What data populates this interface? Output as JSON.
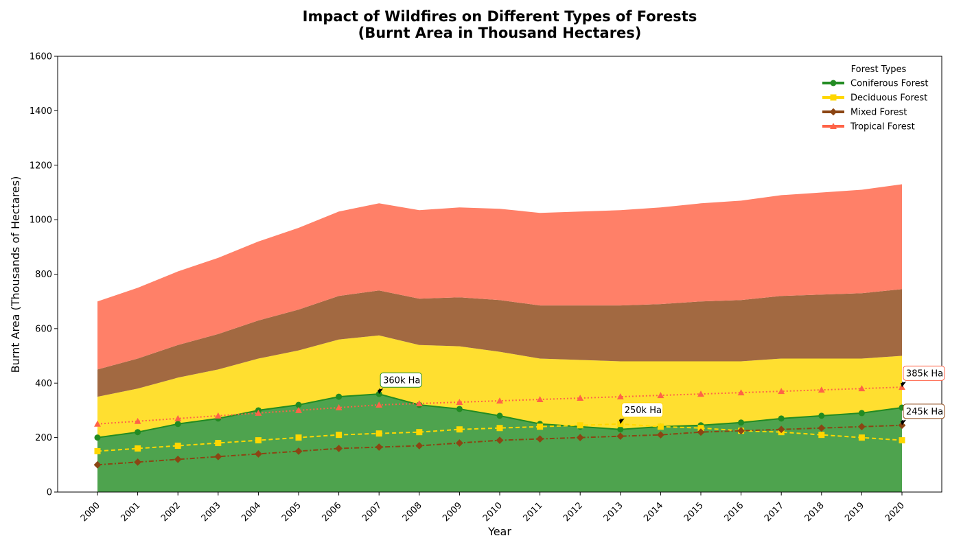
{
  "chart_data": {
    "type": "area",
    "title_line1": "Impact of Wildfires on Different Types of Forests",
    "title_line2": "(Burnt Area in Thousand Hectares)",
    "xlabel": "Year",
    "ylabel": "Burnt Area (Thousands of Hectares)",
    "ylim": [
      0,
      1600
    ],
    "yticks": [
      0,
      200,
      400,
      600,
      800,
      1000,
      1200,
      1400,
      1600
    ],
    "x": [
      2000,
      2001,
      2002,
      2003,
      2004,
      2005,
      2006,
      2007,
      2008,
      2009,
      2010,
      2011,
      2012,
      2013,
      2014,
      2015,
      2016,
      2017,
      2018,
      2019,
      2020
    ],
    "grid": false,
    "stacked": true,
    "legend": {
      "title": "Forest Types",
      "placement": "top-right"
    },
    "series": [
      {
        "name": "Coniferous Forest",
        "line_color": "#228b22",
        "fill_color": "#4ea34e",
        "marker": "circle",
        "line_style": "solid",
        "values": [
          200,
          220,
          250,
          270,
          300,
          320,
          350,
          360,
          320,
          305,
          280,
          250,
          240,
          230,
          240,
          245,
          255,
          270,
          280,
          290,
          310
        ]
      },
      {
        "name": "Deciduous Forest",
        "line_color": "#ffd700",
        "fill_color": "#ffdf30",
        "marker": "square",
        "line_style": "dashed",
        "values": [
          150,
          160,
          170,
          180,
          190,
          200,
          210,
          215,
          220,
          230,
          235,
          240,
          245,
          250,
          240,
          235,
          225,
          220,
          210,
          200,
          190
        ]
      },
      {
        "name": "Mixed Forest",
        "line_color": "#8b4513",
        "fill_color": "#a26941",
        "marker": "diamond",
        "line_style": "dashdot",
        "values": [
          100,
          110,
          120,
          130,
          140,
          150,
          160,
          165,
          170,
          180,
          190,
          195,
          200,
          205,
          210,
          220,
          225,
          230,
          235,
          240,
          245
        ]
      },
      {
        "name": "Tropical Forest",
        "line_color": "#ff6347",
        "fill_color": "#ff8068",
        "marker": "triangle",
        "line_style": "dotted",
        "values": [
          250,
          260,
          270,
          280,
          290,
          300,
          310,
          320,
          325,
          330,
          335,
          340,
          345,
          350,
          355,
          360,
          365,
          370,
          375,
          380,
          385
        ]
      }
    ],
    "annotations": [
      {
        "text": "360k Ha",
        "x": 2007,
        "y": 360,
        "text_x": 2007.05,
        "text_y": 400,
        "color": "#228b22"
      },
      {
        "text": "250k Ha",
        "x": 2013,
        "y": 250,
        "text_x": 2013.05,
        "text_y": 290,
        "color": "#ffd700"
      },
      {
        "text": "245k Ha",
        "x": 2020,
        "y": 245,
        "text_x": 2020.05,
        "text_y": 285,
        "color": "#8b4513"
      },
      {
        "text": "385k Ha",
        "x": 2020,
        "y": 385,
        "text_x": 2020.05,
        "text_y": 425,
        "color": "#ff6347"
      }
    ]
  }
}
